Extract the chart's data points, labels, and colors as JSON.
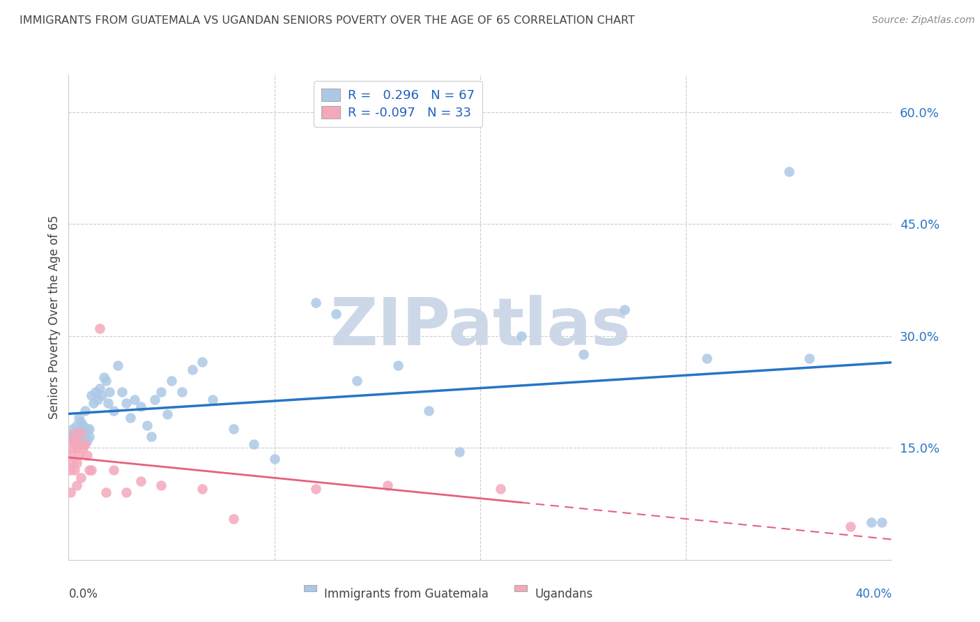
{
  "title": "IMMIGRANTS FROM GUATEMALA VS UGANDAN SENIORS POVERTY OVER THE AGE OF 65 CORRELATION CHART",
  "source": "Source: ZipAtlas.com",
  "ylabel": "Seniors Poverty Over the Age of 65",
  "xlim": [
    0.0,
    0.4
  ],
  "ylim": [
    0.0,
    0.65
  ],
  "ytick_labels": [
    "15.0%",
    "30.0%",
    "45.0%",
    "60.0%"
  ],
  "ytick_values": [
    0.15,
    0.3,
    0.45,
    0.6
  ],
  "legend_blue_r_val": "0.296",
  "legend_blue_n": "N = 67",
  "legend_pink_r_val": "-0.097",
  "legend_pink_n": "N = 33",
  "blue_color": "#adc8e6",
  "pink_color": "#f4a8bb",
  "blue_line_color": "#2775c4",
  "pink_line_color": "#e8607a",
  "legend_text_color": "#2060c0",
  "title_color": "#444444",
  "source_color": "#888888",
  "watermark_color": "#ccd8e8",
  "grid_color": "#cccccc",
  "blue_x": [
    0.001,
    0.002,
    0.003,
    0.003,
    0.004,
    0.004,
    0.005,
    0.005,
    0.005,
    0.006,
    0.006,
    0.006,
    0.007,
    0.007,
    0.007,
    0.008,
    0.008,
    0.008,
    0.009,
    0.009,
    0.01,
    0.01,
    0.011,
    0.012,
    0.013,
    0.014,
    0.015,
    0.016,
    0.017,
    0.018,
    0.019,
    0.02,
    0.022,
    0.024,
    0.026,
    0.028,
    0.03,
    0.032,
    0.035,
    0.038,
    0.04,
    0.042,
    0.045,
    0.048,
    0.05,
    0.055,
    0.06,
    0.065,
    0.07,
    0.08,
    0.09,
    0.1,
    0.12,
    0.13,
    0.14,
    0.16,
    0.175,
    0.19,
    0.22,
    0.25,
    0.27,
    0.31,
    0.35,
    0.36,
    0.39,
    0.395,
    0.002
  ],
  "blue_y": [
    0.165,
    0.175,
    0.155,
    0.17,
    0.165,
    0.18,
    0.17,
    0.19,
    0.165,
    0.16,
    0.175,
    0.185,
    0.155,
    0.175,
    0.18,
    0.165,
    0.17,
    0.2,
    0.175,
    0.16,
    0.165,
    0.175,
    0.22,
    0.21,
    0.225,
    0.215,
    0.23,
    0.22,
    0.245,
    0.24,
    0.21,
    0.225,
    0.2,
    0.26,
    0.225,
    0.21,
    0.19,
    0.215,
    0.205,
    0.18,
    0.165,
    0.215,
    0.225,
    0.195,
    0.24,
    0.225,
    0.255,
    0.265,
    0.215,
    0.175,
    0.155,
    0.135,
    0.345,
    0.33,
    0.24,
    0.26,
    0.2,
    0.145,
    0.3,
    0.275,
    0.335,
    0.27,
    0.52,
    0.27,
    0.05,
    0.05,
    0.165
  ],
  "pink_x": [
    0.001,
    0.001,
    0.001,
    0.002,
    0.002,
    0.002,
    0.003,
    0.003,
    0.003,
    0.004,
    0.004,
    0.004,
    0.005,
    0.005,
    0.006,
    0.006,
    0.007,
    0.008,
    0.009,
    0.01,
    0.011,
    0.015,
    0.018,
    0.022,
    0.028,
    0.035,
    0.045,
    0.065,
    0.08,
    0.12,
    0.155,
    0.21,
    0.38
  ],
  "pink_y": [
    0.12,
    0.09,
    0.14,
    0.16,
    0.15,
    0.13,
    0.17,
    0.16,
    0.12,
    0.15,
    0.13,
    0.1,
    0.155,
    0.14,
    0.17,
    0.11,
    0.15,
    0.155,
    0.14,
    0.12,
    0.12,
    0.31,
    0.09,
    0.12,
    0.09,
    0.105,
    0.1,
    0.095,
    0.055,
    0.095,
    0.1,
    0.095,
    0.045
  ]
}
